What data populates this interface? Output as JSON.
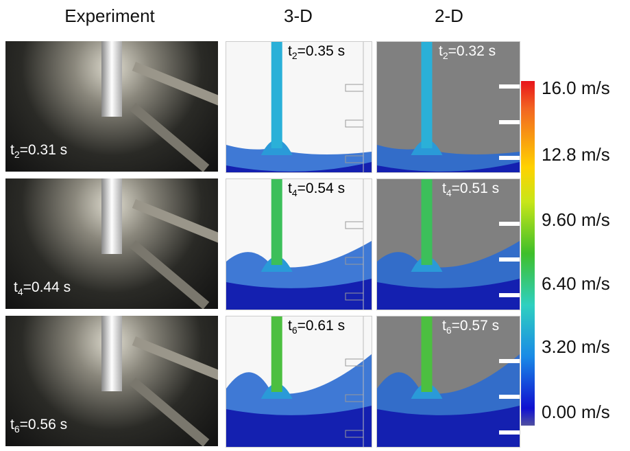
{
  "headers": [
    "Experiment",
    "3-D",
    "2-D"
  ],
  "rows": [
    {
      "experiment": {
        "var": "t",
        "sub": "2",
        "rest": "=0.31 s"
      },
      "sim3d": {
        "var": "t",
        "sub": "2",
        "rest": "=0.35 s"
      },
      "sim2d": {
        "var": "t",
        "sub": "2",
        "rest": "=0.32 s"
      }
    },
    {
      "experiment": {
        "var": "t",
        "sub": "4",
        "rest": "=0.44 s"
      },
      "sim3d": {
        "var": "t",
        "sub": "4",
        "rest": "=0.54 s"
      },
      "sim2d": {
        "var": "t",
        "sub": "4",
        "rest": "=0.51 s"
      }
    },
    {
      "experiment": {
        "var": "t",
        "sub": "6",
        "rest": "=0.56 s"
      },
      "sim3d": {
        "var": "t",
        "sub": "6",
        "rest": "=0.61 s"
      },
      "sim2d": {
        "var": "t",
        "sub": "6",
        "rest": "=0.57 s"
      }
    }
  ],
  "colorbar": {
    "labels": [
      "16.0 m/s",
      "12.8 m/s",
      "9.60 m/s",
      "6.40 m/s",
      "3.20 m/s",
      "0.00 m/s"
    ]
  }
}
